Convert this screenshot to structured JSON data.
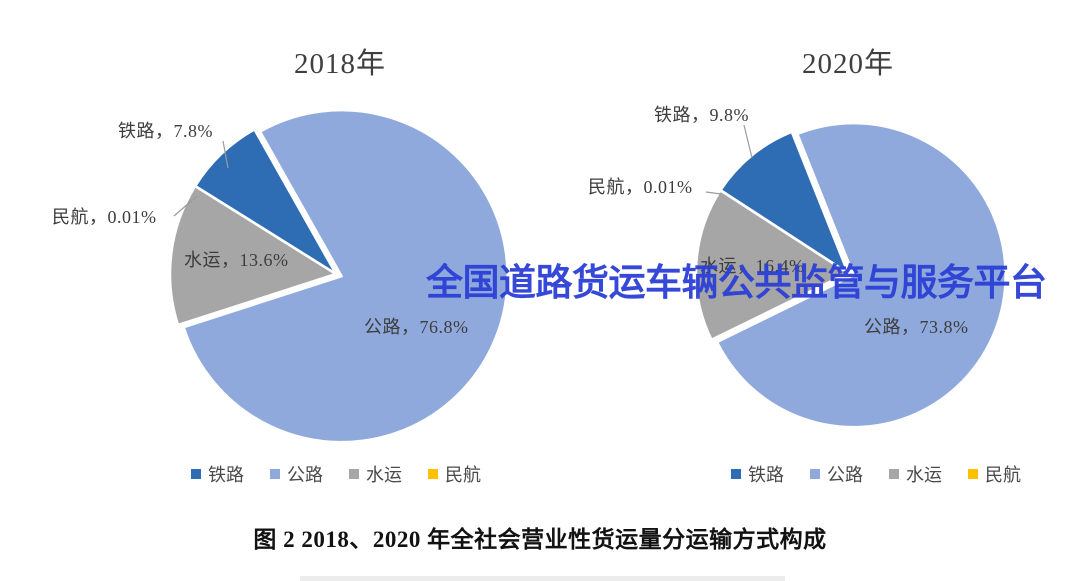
{
  "watermark": {
    "text": "全国道路货运车辆公共监管与服务平台",
    "color": "#2b3fd6"
  },
  "caption": "图 2 2018、2020 年全社会营业性货运量分运输方式构成",
  "legend": {
    "items": [
      {
        "key": "railway",
        "label": "铁路",
        "color": "#2e6cb4"
      },
      {
        "key": "highway",
        "label": "公路",
        "color": "#8fa9dc"
      },
      {
        "key": "waterway",
        "label": "水运",
        "color": "#a6a6a6"
      },
      {
        "key": "civil-aviation",
        "label": "民航",
        "color": "#ffc000"
      }
    ]
  },
  "chart_data": [
    {
      "type": "pie",
      "title": "2018年",
      "categories": [
        "铁路",
        "公路",
        "水运",
        "民航"
      ],
      "keys": [
        "railway",
        "highway",
        "waterway",
        "civil-aviation"
      ],
      "values": [
        7.8,
        76.8,
        13.6,
        0.01
      ],
      "unit": "%",
      "colors": [
        "#2e6cb4",
        "#8fa9dc",
        "#a6a6a6",
        "#ffc000"
      ],
      "data_labels": [
        "铁路，7.8%",
        "公路，76.8%",
        "水运，13.6%",
        "民航，0.01%"
      ],
      "legend_position": "bottom"
    },
    {
      "type": "pie",
      "title": "2020年",
      "categories": [
        "铁路",
        "公路",
        "水运",
        "民航"
      ],
      "keys": [
        "railway",
        "highway",
        "waterway",
        "civil-aviation"
      ],
      "values": [
        9.8,
        73.8,
        16.4,
        0.01
      ],
      "unit": "%",
      "colors": [
        "#2e6cb4",
        "#8fa9dc",
        "#a6a6a6",
        "#ffc000"
      ],
      "data_labels": [
        "铁路，9.8%",
        "公路，73.8%",
        "水运，16.4%",
        "民航，0.01%"
      ],
      "legend_position": "bottom"
    }
  ]
}
